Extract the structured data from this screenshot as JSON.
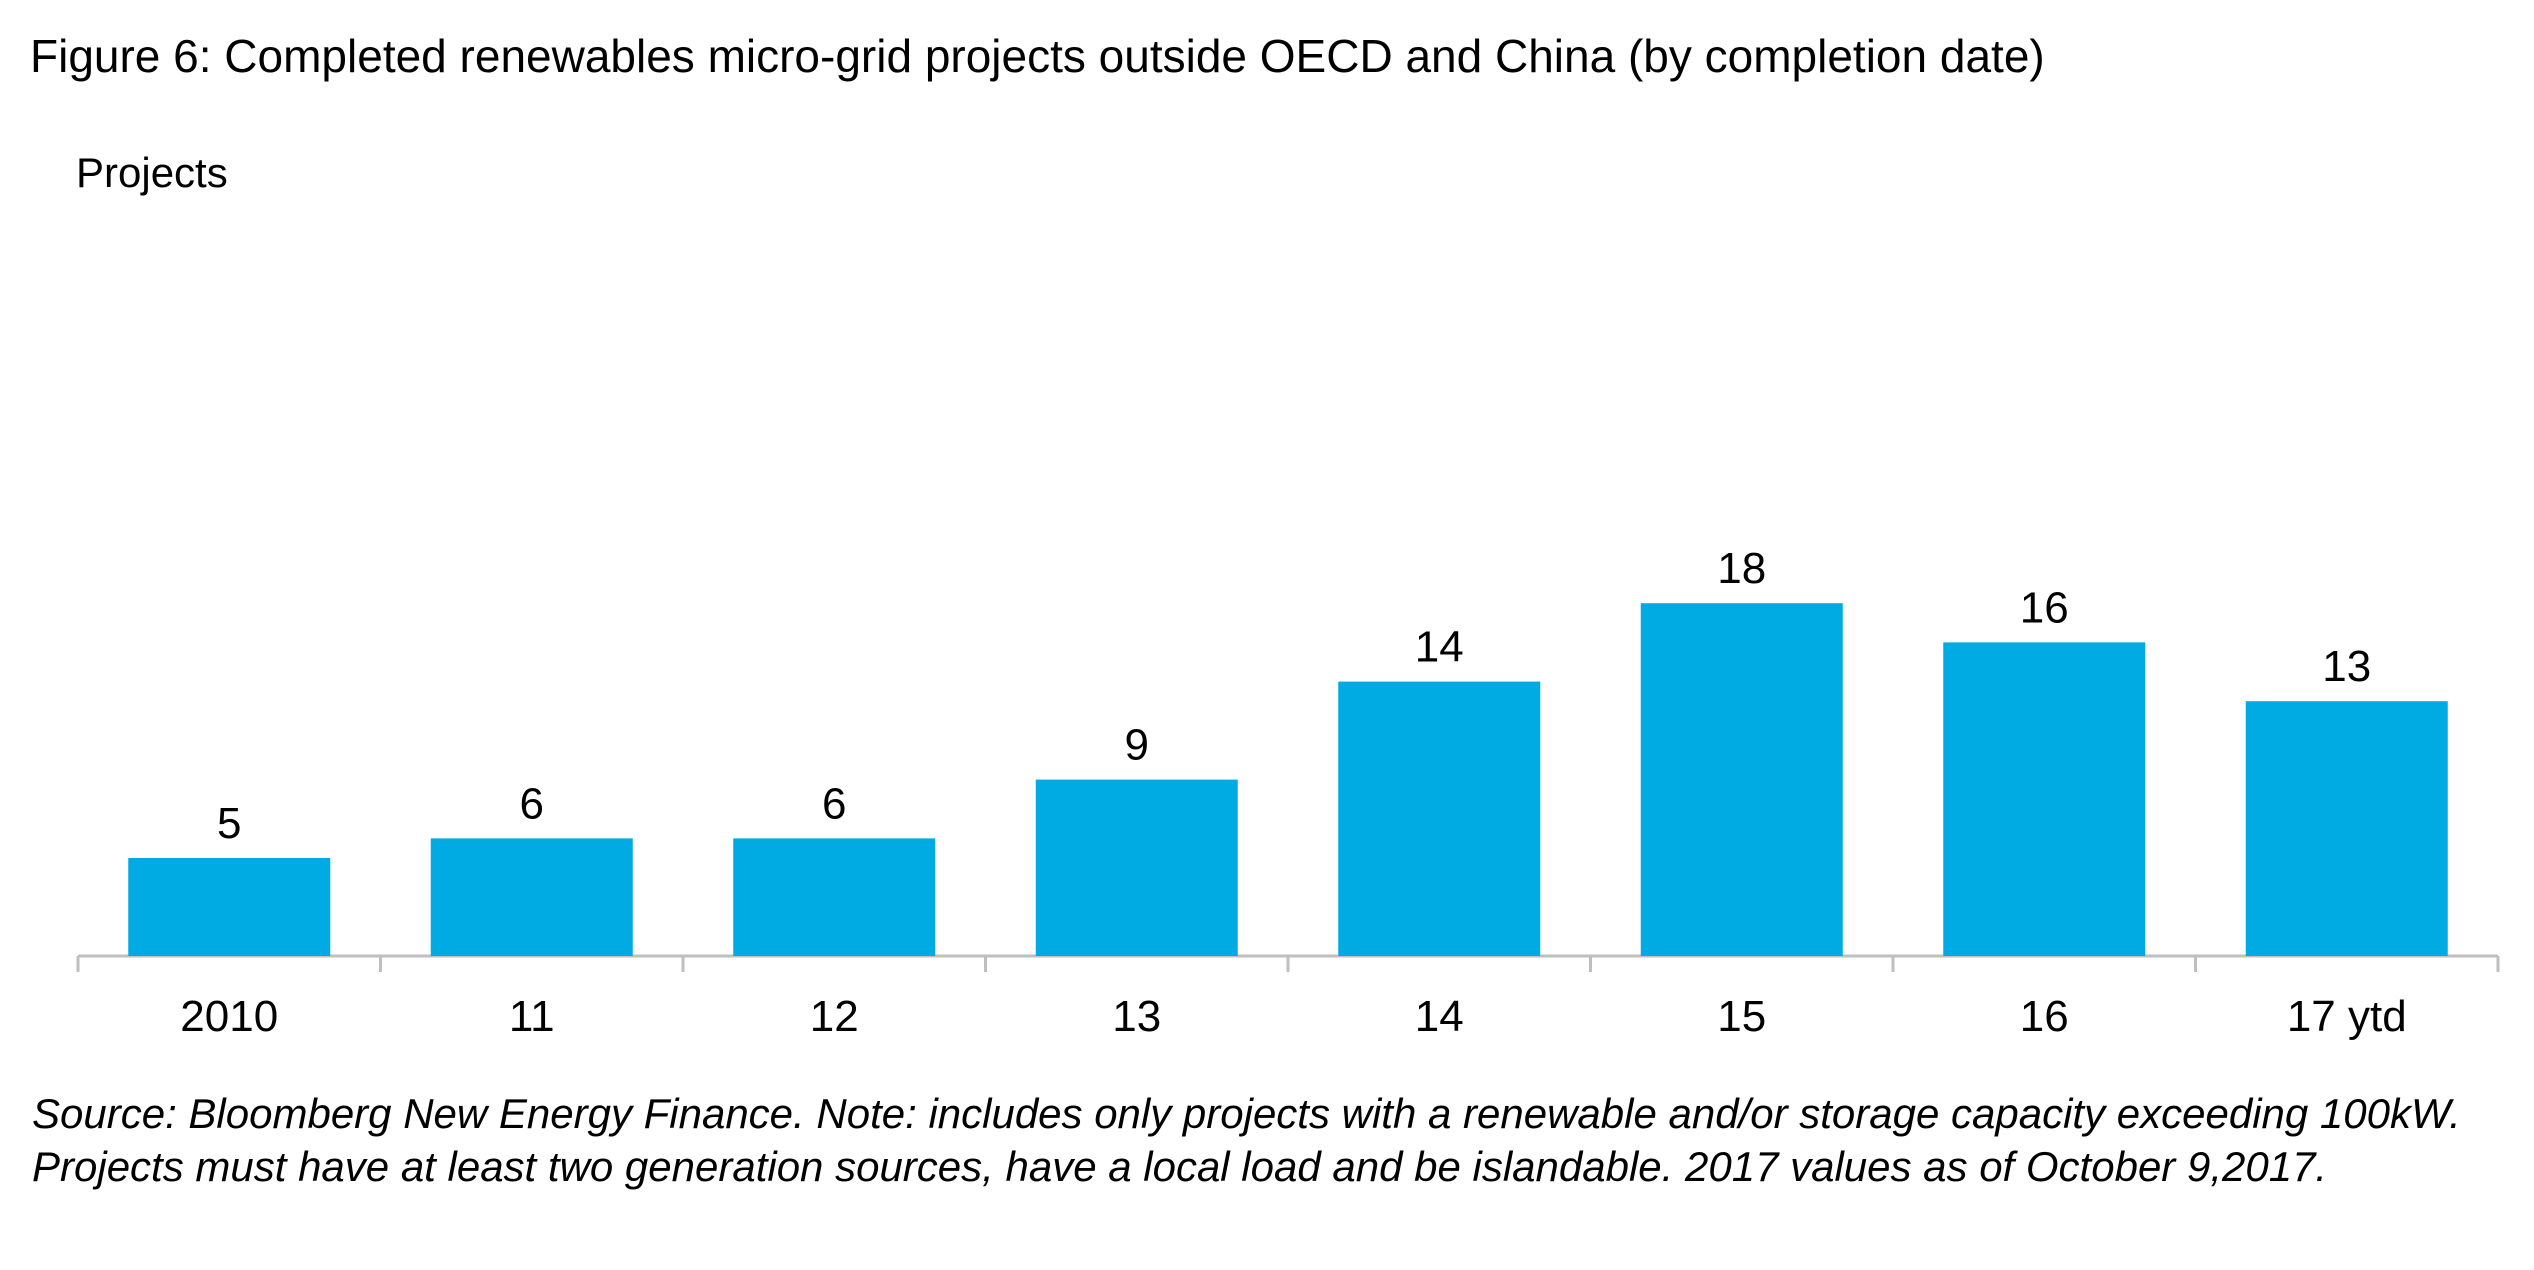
{
  "title": "Figure 6: Completed renewables micro-grid projects outside OECD and China (by completion date)",
  "source_note": "Source: Bloomberg New Energy Finance. Note: includes only projects with a renewable and/or storage capacity exceeding 100kW. Projects must have at least two generation sources, have a local load and be islandable. 2017 values as of October 9,2017.",
  "colors": {
    "bar": "#00ABE3",
    "axis": "#BFBFBF",
    "text": "#000000"
  },
  "chart_data": {
    "type": "bar",
    "title": "Figure 6: Completed renewables micro-grid projects outside OECD and China (by completion date)",
    "xlabel": "",
    "ylabel": "Projects",
    "categories": [
      "2010",
      "11",
      "12",
      "13",
      "14",
      "15",
      "16",
      "17 ytd"
    ],
    "values": [
      5,
      6,
      6,
      9,
      14,
      18,
      16,
      13
    ],
    "data_labels": [
      "5",
      "6",
      "6",
      "9",
      "14",
      "18",
      "16",
      "13"
    ],
    "ylim": [
      0,
      18
    ],
    "grid": false,
    "legend": "none"
  }
}
